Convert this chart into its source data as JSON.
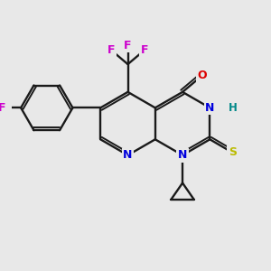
{
  "bg_color": "#e8e8e8",
  "bond_color": "#1a1a1a",
  "bond_width": 1.7,
  "dbo": 0.07,
  "atom_colors": {
    "N": "#0000dd",
    "O": "#dd0000",
    "S": "#bbbb00",
    "F": "#cc00cc",
    "H": "#008888"
  },
  "font_size": 9.0,
  "fig_size": [
    3.0,
    3.0
  ],
  "dpi": 100
}
